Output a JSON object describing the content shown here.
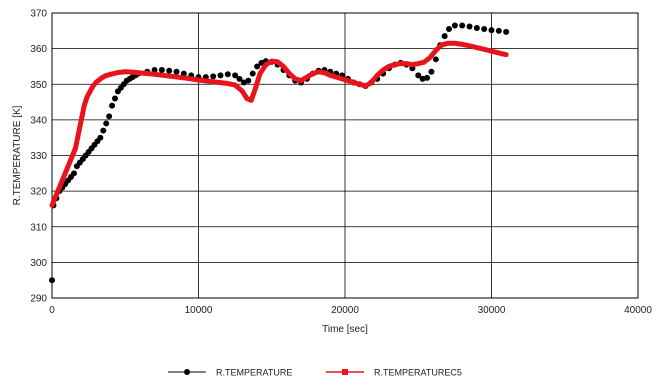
{
  "chart_data": {
    "type": "line",
    "title": "",
    "xlabel": "Time [sec]",
    "ylabel": "R.TEMPERATURE [K]",
    "xlim": [
      0,
      40000
    ],
    "ylim": [
      290,
      370
    ],
    "x_ticks": [
      "0",
      "10000",
      "20000",
      "30000",
      "40000"
    ],
    "y_ticks": [
      "290",
      "300",
      "310",
      "320",
      "330",
      "340",
      "350",
      "360",
      "370"
    ],
    "grid": true,
    "legend_position": "bottom",
    "series": [
      {
        "name": "R.TEMPERATURE",
        "color": "#000000",
        "marker": "circle",
        "x": [
          0,
          100,
          300,
          500,
          700,
          900,
          1100,
          1300,
          1500,
          1700,
          1900,
          2100,
          2300,
          2500,
          2700,
          2900,
          3100,
          3300,
          3500,
          3700,
          3900,
          4100,
          4300,
          4500,
          4700,
          4900,
          5100,
          5300,
          5500,
          5700,
          5900,
          6500,
          7000,
          7500,
          8000,
          8500,
          9000,
          9500,
          10000,
          10500,
          11000,
          11500,
          12000,
          12500,
          12800,
          13100,
          13400,
          13700,
          14000,
          14300,
          14600,
          15000,
          15400,
          15800,
          16200,
          16600,
          17000,
          17400,
          17800,
          18200,
          18600,
          19000,
          19400,
          19800,
          20200,
          20600,
          21000,
          21400,
          21800,
          22200,
          22600,
          23000,
          23400,
          23800,
          24200,
          24600,
          25000,
          25300,
          25600,
          25900,
          26200,
          26500,
          26800,
          27100,
          27500,
          28000,
          28500,
          29000,
          29500,
          30000,
          30500,
          31000
        ],
        "y": [
          295,
          316,
          318,
          320,
          321,
          322,
          323,
          324,
          325,
          327,
          328,
          329,
          330,
          331,
          332,
          333,
          334,
          335,
          337,
          339,
          341,
          344,
          346,
          348,
          349,
          350,
          351,
          351.5,
          352,
          352.5,
          353,
          353.5,
          354,
          354,
          353.8,
          353.5,
          353,
          352.5,
          352,
          352,
          352.2,
          352.5,
          352.8,
          352.5,
          351.5,
          350.5,
          351,
          353,
          355,
          356,
          356.5,
          356.3,
          355.5,
          354,
          352.5,
          351,
          350.5,
          351.5,
          353,
          353.8,
          354,
          353.5,
          353,
          352.5,
          351.5,
          350.5,
          350,
          349.5,
          350.5,
          351.5,
          353,
          354.5,
          355.5,
          356,
          355.5,
          354.5,
          352.5,
          351.5,
          351.8,
          353.5,
          357,
          361,
          363.5,
          365.5,
          366.5,
          366.5,
          366.2,
          365.8,
          365.5,
          365.2,
          365,
          364.7
        ]
      },
      {
        "name": "R.TEMPERATUREC5",
        "color": "#e8141c",
        "marker": "square",
        "x": [
          0,
          200,
          400,
          600,
          800,
          1000,
          1200,
          1400,
          1600,
          1800,
          2000,
          2200,
          2400,
          2600,
          2800,
          3000,
          3300,
          3600,
          4000,
          4500,
          5000,
          5500,
          6000,
          7000,
          8000,
          9000,
          10000,
          11000,
          12000,
          12500,
          13000,
          13300,
          13600,
          13900,
          14200,
          14600,
          15000,
          15400,
          15800,
          16200,
          16600,
          17000,
          17400,
          17800,
          18200,
          18600,
          19000,
          19400,
          19800,
          20200,
          20600,
          21000,
          21400,
          21800,
          22200,
          22600,
          23000,
          23400,
          23800,
          24200,
          24600,
          25000,
          25400,
          25800,
          26200,
          26600,
          27000,
          27500,
          28000,
          28500,
          29000,
          29500,
          30000,
          30500,
          31000
        ],
        "y": [
          316,
          318,
          320,
          322,
          324,
          326,
          328,
          330,
          332,
          336,
          340,
          344,
          346.5,
          348,
          349.5,
          350.5,
          351.5,
          352.3,
          352.8,
          353.3,
          353.5,
          353.4,
          353.2,
          352.8,
          352.3,
          351.8,
          351.2,
          350.7,
          350.2,
          349.8,
          348,
          346,
          345.5,
          349,
          353,
          355.5,
          356.5,
          356.3,
          355,
          353,
          351.5,
          351,
          352,
          353,
          353.5,
          353.2,
          352.5,
          352,
          351.5,
          351,
          350.5,
          350,
          349.5,
          350.5,
          352.5,
          354,
          355,
          355.5,
          355.8,
          355.8,
          355.5,
          355.8,
          356.2,
          357.5,
          359.5,
          361,
          361.5,
          361.5,
          361.2,
          360.8,
          360.3,
          359.8,
          359.3,
          358.8,
          358.3
        ]
      }
    ]
  }
}
